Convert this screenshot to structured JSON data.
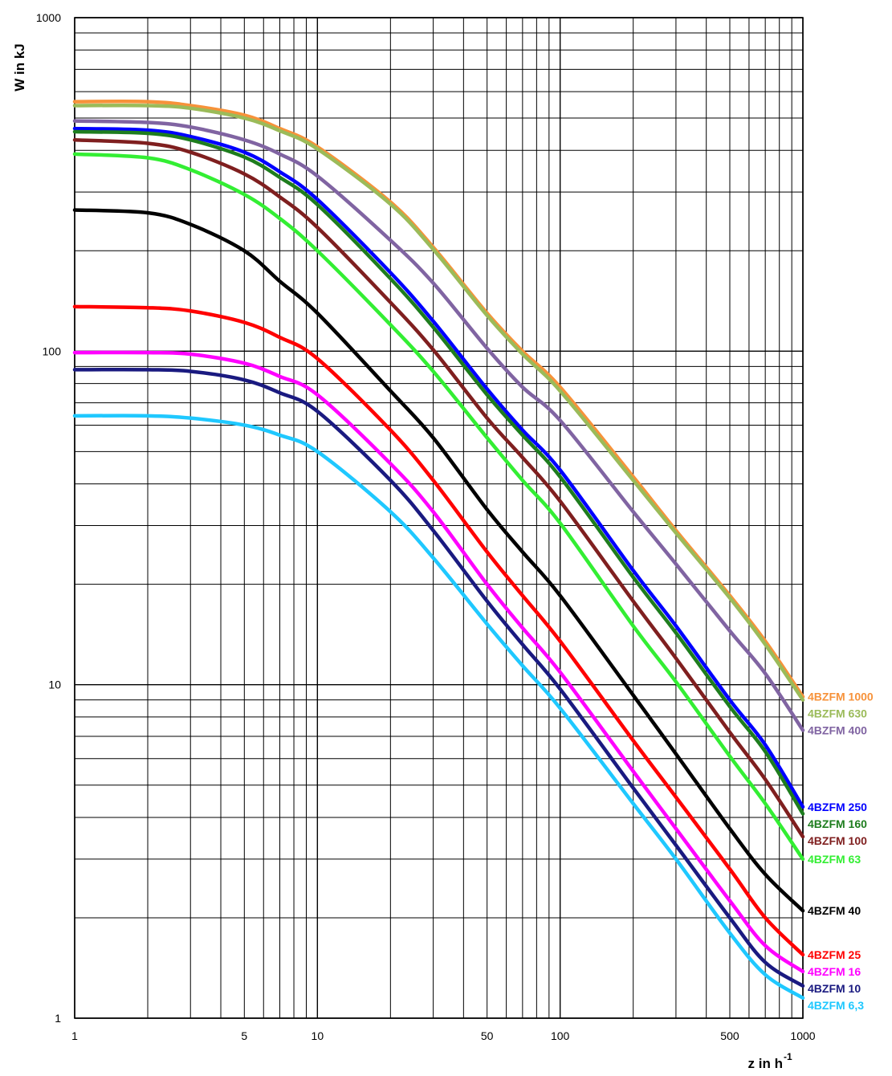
{
  "chart_data": {
    "type": "line",
    "xlabel": "z in h",
    "xlabel_superscript": "-1",
    "ylabel": "W in kJ",
    "x_scale": "log",
    "y_scale": "log",
    "xlim": [
      1,
      1000
    ],
    "ylim": [
      1,
      1000
    ],
    "x_tick_labels": [
      {
        "value": 1,
        "label": "1"
      },
      {
        "value": 5,
        "label": "5"
      },
      {
        "value": 10,
        "label": "10"
      },
      {
        "value": 50,
        "label": "50"
      },
      {
        "value": 100,
        "label": "100"
      },
      {
        "value": 500,
        "label": "500"
      },
      {
        "value": 1000,
        "label": "1000"
      }
    ],
    "y_tick_labels": [
      {
        "value": 1,
        "label": "1"
      },
      {
        "value": 10,
        "label": "10"
      },
      {
        "value": 100,
        "label": "100"
      },
      {
        "value": 1000,
        "label": "1000"
      }
    ],
    "grid": true,
    "legend": "inline labels at right end of each curve",
    "x": [
      1,
      2,
      3,
      5,
      7,
      10,
      20,
      30,
      50,
      70,
      100,
      200,
      300,
      500,
      700,
      1000
    ],
    "series": [
      {
        "name": "4BZFM 1000",
        "color": "#f7923a",
        "values": [
          560,
          560,
          545,
          510,
          465,
          410,
          280,
          205,
          130,
          100,
          78,
          42,
          29,
          18.5,
          13.5,
          9.2
        ]
      },
      {
        "name": "4BZFM 630",
        "color": "#9bbb59",
        "values": [
          545,
          545,
          535,
          500,
          458,
          404,
          276,
          202,
          128,
          98,
          76,
          41,
          28.5,
          18.2,
          13.2,
          9.0
        ]
      },
      {
        "name": "4BZFM 400",
        "color": "#8064a2",
        "values": [
          490,
          485,
          470,
          430,
          390,
          335,
          215,
          160,
          102,
          78,
          62,
          33,
          23,
          14.5,
          10.8,
          7.3
        ]
      },
      {
        "name": "4BZFM 250",
        "color": "#0000ff",
        "values": [
          465,
          460,
          440,
          395,
          345,
          285,
          172,
          123,
          77,
          58,
          44,
          22,
          15,
          9.0,
          6.6,
          4.3
        ]
      },
      {
        "name": "4BZFM 160",
        "color": "#1e7d1e",
        "values": [
          455,
          450,
          430,
          382,
          332,
          275,
          165,
          118,
          74,
          56,
          42,
          21,
          14.3,
          8.6,
          6.3,
          4.1
        ]
      },
      {
        "name": "4BZFM 100",
        "color": "#7f1f1f",
        "values": [
          430,
          420,
          395,
          340,
          290,
          235,
          140,
          101,
          63,
          48,
          35.5,
          17.8,
          12,
          7.2,
          5.2,
          3.5
        ]
      },
      {
        "name": "4BZFM 63",
        "color": "#33ee33",
        "values": [
          390,
          380,
          350,
          295,
          250,
          200,
          120,
          87,
          55,
          41,
          30.5,
          15,
          10.2,
          6.1,
          4.4,
          3.0
        ]
      },
      {
        "name": "4BZFM 40",
        "color": "#000000",
        "values": [
          265,
          260,
          240,
          200,
          162,
          130,
          76,
          55,
          33.5,
          25,
          18.5,
          9.3,
          6.2,
          3.7,
          2.7,
          2.1
        ]
      },
      {
        "name": "4BZFM 25",
        "color": "#ff0000",
        "values": [
          136,
          135,
          132,
          122,
          110,
          95,
          58,
          41,
          25,
          18.5,
          13.5,
          6.8,
          4.6,
          2.8,
          2.0,
          1.55
        ]
      },
      {
        "name": "4BZFM 16",
        "color": "#ff00ff",
        "values": [
          99,
          99,
          98,
          92,
          84,
          74,
          46,
          33,
          20,
          14.8,
          10.9,
          5.5,
          3.7,
          2.25,
          1.65,
          1.38
        ]
      },
      {
        "name": "4BZFM 10",
        "color": "#1a1a80",
        "values": [
          88,
          88,
          87,
          82,
          75,
          66,
          41,
          29,
          17.8,
          13.2,
          9.7,
          4.9,
          3.3,
          2.0,
          1.47,
          1.25
        ]
      },
      {
        "name": "4BZFM 6,3",
        "color": "#1fc8ff",
        "values": [
          64,
          64,
          63,
          60,
          56,
          50,
          33,
          24,
          15.2,
          11.4,
          8.5,
          4.4,
          3.0,
          1.8,
          1.35,
          1.15
        ]
      }
    ]
  }
}
